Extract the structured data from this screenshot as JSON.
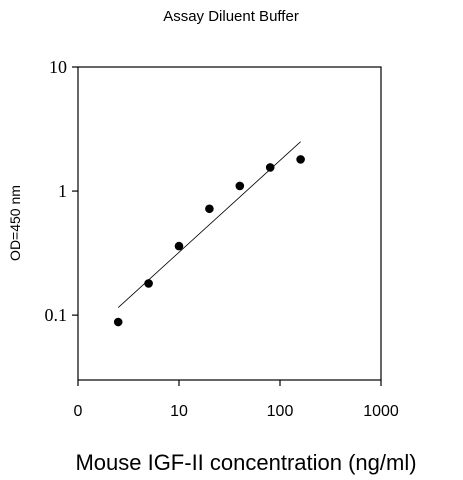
{
  "chart_data": {
    "type": "scatter",
    "title": "Assay Diluent  Buffer",
    "xlabel": "Mouse IGF-II concentration (ng/ml)",
    "ylabel": "OD=450 nm",
    "x_scale": "log",
    "y_scale": "log",
    "xlim": [
      1,
      1000
    ],
    "ylim": [
      0.03,
      10
    ],
    "x_ticks": [
      {
        "value": 1,
        "label": "0"
      },
      {
        "value": 10,
        "label": "10"
      },
      {
        "value": 100,
        "label": "100"
      },
      {
        "value": 1000,
        "label": "1000"
      }
    ],
    "y_ticks": [
      {
        "value": 0.1,
        "label": "0.1"
      },
      {
        "value": 1,
        "label": "1"
      },
      {
        "value": 10,
        "label": "10"
      }
    ],
    "grid": false,
    "legend": "none",
    "series": [
      {
        "points": [
          {
            "x": 2.5,
            "y": 0.088
          },
          {
            "x": 5,
            "y": 0.18
          },
          {
            "x": 10,
            "y": 0.36
          },
          {
            "x": 20,
            "y": 0.72
          },
          {
            "x": 40,
            "y": 1.1
          },
          {
            "x": 80,
            "y": 1.55
          },
          {
            "x": 160,
            "y": 1.8
          }
        ],
        "color": "#000000"
      }
    ],
    "fit_line": {
      "x": [
        2.5,
        160
      ],
      "y": [
        0.115,
        2.5
      ],
      "color": "#000000"
    }
  }
}
